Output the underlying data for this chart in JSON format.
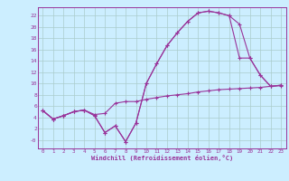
{
  "xlabel": "Windchill (Refroidissement éolien,°C)",
  "background_color": "#cceeff",
  "grid_color": "#aacccc",
  "line_color": "#993399",
  "spine_color": "#993399",
  "xlim": [
    -0.5,
    23.5
  ],
  "ylim": [
    -1.5,
    23.5
  ],
  "xticks": [
    0,
    1,
    2,
    3,
    4,
    5,
    6,
    7,
    8,
    9,
    10,
    11,
    12,
    13,
    14,
    15,
    16,
    17,
    18,
    19,
    20,
    21,
    22,
    23
  ],
  "yticks": [
    0,
    2,
    4,
    6,
    8,
    10,
    12,
    14,
    16,
    18,
    20,
    22
  ],
  "ytick_labels": [
    "-0",
    "2",
    "4",
    "6",
    "8",
    "10",
    "12",
    "14",
    "16",
    "18",
    "20",
    "22"
  ],
  "series": [
    {
      "x": [
        0,
        1,
        2,
        3,
        4,
        5,
        6,
        7,
        8,
        9,
        10,
        11,
        12,
        13,
        14,
        15,
        16,
        17,
        18,
        19,
        20,
        21,
        22,
        23
      ],
      "y": [
        5.2,
        3.7,
        4.3,
        5.0,
        5.3,
        4.5,
        4.7,
        6.5,
        6.8,
        6.8,
        7.2,
        7.5,
        7.8,
        8.0,
        8.2,
        8.5,
        8.7,
        8.9,
        9.0,
        9.1,
        9.2,
        9.3,
        9.5,
        9.6
      ]
    },
    {
      "x": [
        0,
        1,
        2,
        3,
        4,
        5,
        6,
        7,
        8,
        9,
        10,
        11,
        12,
        13,
        14,
        15,
        16,
        17,
        18,
        19,
        20,
        21,
        22,
        23
      ],
      "y": [
        5.2,
        3.7,
        4.3,
        5.0,
        5.3,
        4.3,
        1.3,
        2.5,
        -0.3,
        3.0,
        10.0,
        13.5,
        16.7,
        19.0,
        21.0,
        22.5,
        22.8,
        22.5,
        22.0,
        14.5,
        14.5,
        11.5,
        9.5,
        9.7
      ]
    },
    {
      "x": [
        0,
        1,
        2,
        3,
        4,
        5,
        6,
        7,
        8,
        9,
        10,
        11,
        12,
        13,
        14,
        15,
        16,
        17,
        18,
        19,
        20,
        21,
        22,
        23
      ],
      "y": [
        5.2,
        3.7,
        4.3,
        5.0,
        5.3,
        4.3,
        1.3,
        2.5,
        -0.3,
        3.0,
        10.0,
        13.5,
        16.7,
        19.0,
        21.0,
        22.5,
        22.8,
        22.5,
        22.0,
        20.5,
        14.5,
        11.5,
        9.5,
        9.7
      ]
    }
  ]
}
